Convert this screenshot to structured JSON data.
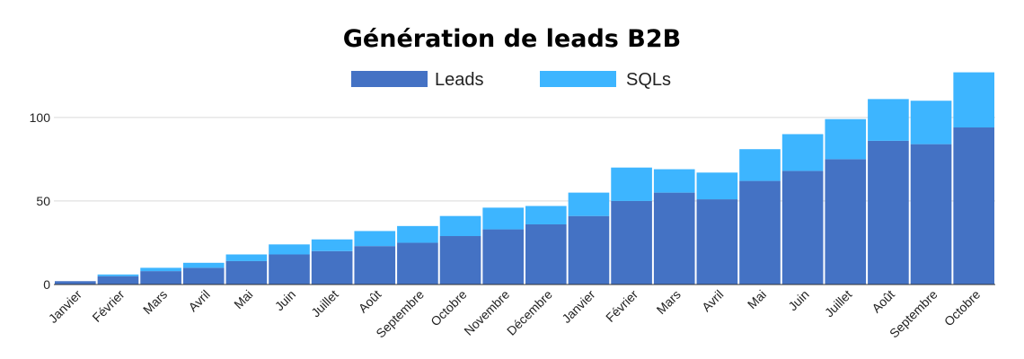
{
  "chart_data": {
    "type": "bar",
    "stacked": true,
    "title": "Génération de leads B2B",
    "categories": [
      "Janvier",
      "Février",
      "Mars",
      "Avril",
      "Mai",
      "Juin",
      "Juillet",
      "Août",
      "Septembre",
      "Octobre",
      "Novembre",
      "Décembre",
      "Janvier",
      "Février",
      "Mars",
      "Avril",
      "Mai",
      "Juin",
      "Juillet",
      "Août",
      "Septembre",
      "Octobre"
    ],
    "series": [
      {
        "name": "Leads",
        "color": "#4472c4",
        "values": [
          2,
          5,
          8,
          10,
          14,
          18,
          20,
          23,
          25,
          29,
          33,
          36,
          41,
          50,
          55,
          51,
          62,
          68,
          75,
          86,
          84,
          94
        ]
      },
      {
        "name": "SQLs",
        "color": "#3db5ff",
        "values": [
          0,
          1,
          2,
          3,
          4,
          6,
          7,
          9,
          10,
          12,
          13,
          11,
          14,
          20,
          14,
          16,
          19,
          22,
          24,
          25,
          26,
          33
        ]
      }
    ],
    "ylim": [
      0,
      130
    ],
    "yticks": [
      0,
      50,
      100
    ],
    "grid": true,
    "legend": "top-center",
    "xlabel": "",
    "ylabel": ""
  }
}
